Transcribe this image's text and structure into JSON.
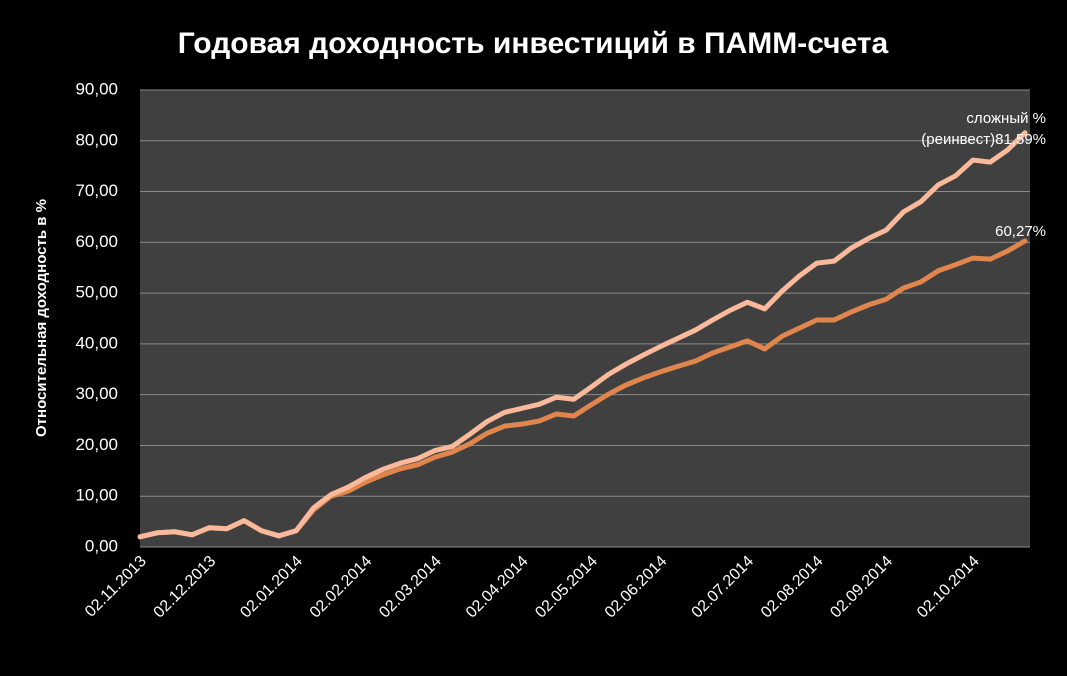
{
  "chart_data": {
    "type": "line",
    "title": "Годовая доходность инвестиций в ПАММ-счета",
    "y_label": "Относительная доходность в %",
    "categories": [
      "02.11.2013",
      null,
      null,
      null,
      "02.12.2013",
      null,
      null,
      null,
      null,
      "02.01.2014",
      null,
      null,
      null,
      "02.02.2014",
      null,
      null,
      null,
      "02.03.2014",
      null,
      null,
      null,
      null,
      "02.04.2014",
      null,
      null,
      null,
      "02.05.2014",
      null,
      null,
      null,
      "02.06.2014",
      null,
      null,
      null,
      null,
      "02.07.2014",
      null,
      null,
      null,
      "02.08.2014",
      null,
      null,
      null,
      "02.09.2014",
      null,
      null,
      null,
      null,
      "02.10.2014",
      null,
      null,
      null
    ],
    "series": [
      {
        "name": "сложный % (реинвест)",
        "color": "#f9b99a",
        "values": [
          2.0,
          2.8,
          3.0,
          2.4,
          3.8,
          3.6,
          5.2,
          3.2,
          2.2,
          3.2,
          7.7,
          10.3,
          11.8,
          13.7,
          15.3,
          16.5,
          17.4,
          19.0,
          19.8,
          22.2,
          24.7,
          26.5,
          27.3,
          28.1,
          29.5,
          29.1,
          31.5,
          34.0,
          36.0,
          37.8,
          39.5,
          41.1,
          42.7,
          44.7,
          46.6,
          48.2,
          46.9,
          50.4,
          53.4,
          55.9,
          56.3,
          58.9,
          60.8,
          62.4,
          66.0,
          68.0,
          71.3,
          73.1,
          76.2,
          75.8,
          78.2,
          81.59
        ],
        "value_labels": [
          null,
          null,
          null,
          null,
          null,
          null,
          null,
          null,
          null,
          null,
          null,
          null,
          null,
          null,
          null,
          null,
          null,
          null,
          null,
          null,
          null,
          null,
          null,
          null,
          null,
          null,
          null,
          null,
          null,
          null,
          null,
          null,
          null,
          null,
          null,
          null,
          null,
          null,
          null,
          null,
          null,
          null,
          null,
          null,
          null,
          null,
          null,
          null,
          null,
          null,
          null,
          "81,59%"
        ]
      },
      {
        "color": "#e0854c",
        "values": [
          2.0,
          2.8,
          3.0,
          2.4,
          3.8,
          3.6,
          5.2,
          3.2,
          2.2,
          3.2,
          7.3,
          10.0,
          11.0,
          12.8,
          14.2,
          15.4,
          16.2,
          17.7,
          18.7,
          20.3,
          22.4,
          23.8,
          24.2,
          24.8,
          26.2,
          25.8,
          28.0,
          30.1,
          31.9,
          33.3,
          34.5,
          35.6,
          36.6,
          38.2,
          39.4,
          40.6,
          39.0,
          41.5,
          43.1,
          44.7,
          44.7,
          46.3,
          47.7,
          48.8,
          51.0,
          52.2,
          54.4,
          55.6,
          56.9,
          56.7,
          58.3,
          60.27
        ],
        "value_labels": [
          null,
          null,
          null,
          null,
          null,
          null,
          null,
          null,
          null,
          null,
          null,
          null,
          null,
          null,
          null,
          null,
          null,
          null,
          null,
          null,
          null,
          null,
          null,
          null,
          null,
          null,
          null,
          null,
          null,
          null,
          null,
          null,
          null,
          null,
          null,
          null,
          null,
          null,
          null,
          null,
          null,
          null,
          null,
          null,
          null,
          null,
          null,
          null,
          null,
          null,
          null,
          "60,27%"
        ]
      }
    ],
    "ylim": [
      0,
      90
    ],
    "yticks": [
      {
        "value": 0,
        "label": "0,00"
      },
      {
        "value": 10,
        "label": "10,00"
      },
      {
        "value": 20,
        "label": "20,00"
      },
      {
        "value": 30,
        "label": "30,00"
      },
      {
        "value": 40,
        "label": "40,00"
      },
      {
        "value": 50,
        "label": "50,00"
      },
      {
        "value": 60,
        "label": "60,00"
      },
      {
        "value": 70,
        "label": "70,00"
      },
      {
        "value": 80,
        "label": "80,00"
      },
      {
        "value": 90,
        "label": "90,00"
      }
    ],
    "grid": true
  }
}
